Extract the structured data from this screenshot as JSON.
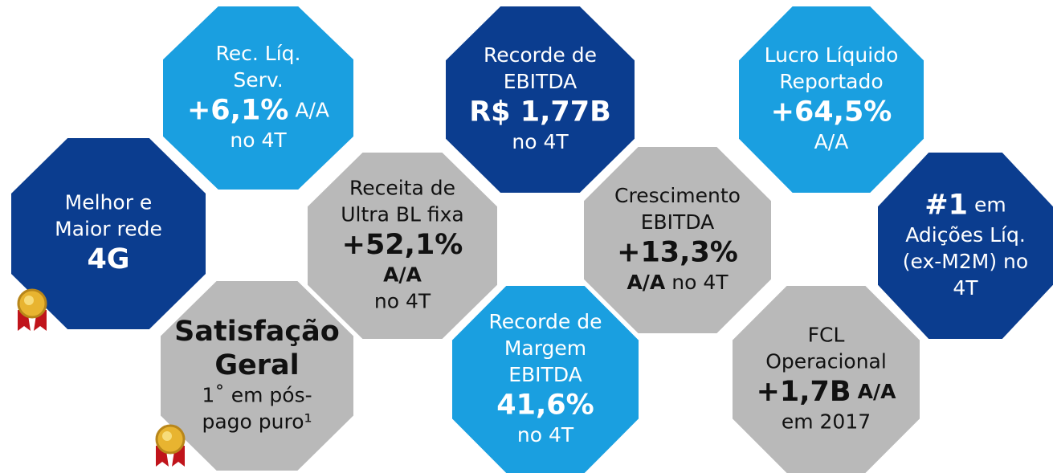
{
  "nodes": [
    {
      "color": "#1a9fe0",
      "text_color": "#ffffff",
      "lines": [
        [
          {
            "text": "Rec. Líq.",
            "style": "normal"
          }
        ],
        [
          {
            "text": "Serv.",
            "style": "normal"
          }
        ],
        [
          {
            "text": "+6,1%",
            "style": "big"
          },
          {
            "text": "A/A",
            "style": "normal"
          }
        ],
        [
          {
            "text": "no 4T",
            "style": "normal"
          }
        ]
      ]
    },
    {
      "color": "#0b3d8f",
      "text_color": "#ffffff",
      "lines": [
        [
          {
            "text": "Melhor e",
            "style": "normal"
          }
        ],
        [
          {
            "text": "Maior rede",
            "style": "normal"
          }
        ],
        [
          {
            "text": "4G",
            "style": "big"
          }
        ]
      ]
    },
    {
      "color": "#b9b9b9",
      "text_color": "#111111",
      "lines": [
        [
          {
            "text": "Receita de",
            "style": "normal"
          }
        ],
        [
          {
            "text": "Ultra BL fixa",
            "style": "normal"
          }
        ],
        [
          {
            "text": "+52,1%",
            "style": "big"
          }
        ],
        [
          {
            "text": "A/A",
            "style": "bold"
          }
        ],
        [
          {
            "text": "no 4T",
            "style": "normal"
          }
        ]
      ]
    },
    {
      "color": "#b9b9b9",
      "text_color": "#111111",
      "lines": [
        [
          {
            "text": "Satisfação",
            "style": "big"
          }
        ],
        [
          {
            "text": "Geral",
            "style": "big"
          }
        ],
        [
          {
            "text": "1˚ em pós-",
            "style": "normal"
          }
        ],
        [
          {
            "text": "pago puro¹",
            "style": "normal"
          }
        ]
      ]
    },
    {
      "color": "#0b3d8f",
      "text_color": "#ffffff",
      "lines": [
        [
          {
            "text": "Recorde de",
            "style": "normal"
          }
        ],
        [
          {
            "text": "EBITDA",
            "style": "normal"
          }
        ],
        [
          {
            "text": "R$ 1,77B",
            "style": "big"
          }
        ],
        [
          {
            "text": "no 4T",
            "style": "normal"
          }
        ]
      ]
    },
    {
      "color": "#b9b9b9",
      "text_color": "#111111",
      "lines": [
        [
          {
            "text": "Crescimento",
            "style": "normal"
          }
        ],
        [
          {
            "text": "EBITDA",
            "style": "normal"
          }
        ],
        [
          {
            "text": "+13,3%",
            "style": "big"
          }
        ],
        [
          {
            "text": "A/A",
            "style": "bold"
          },
          {
            "text": "no 4T",
            "style": "normal"
          }
        ]
      ]
    },
    {
      "color": "#1a9fe0",
      "text_color": "#ffffff",
      "lines": [
        [
          {
            "text": "Recorde de",
            "style": "normal"
          }
        ],
        [
          {
            "text": "Margem",
            "style": "normal"
          }
        ],
        [
          {
            "text": "EBITDA",
            "style": "normal"
          }
        ],
        [
          {
            "text": "41,6%",
            "style": "big"
          }
        ],
        [
          {
            "text": "no 4T",
            "style": "normal"
          }
        ]
      ]
    },
    {
      "color": "#1a9fe0",
      "text_color": "#ffffff",
      "lines": [
        [
          {
            "text": "Lucro Líquido",
            "style": "normal"
          }
        ],
        [
          {
            "text": "Reportado",
            "style": "normal"
          }
        ],
        [
          {
            "text": "+64,5%",
            "style": "big"
          }
        ],
        [
          {
            "text": "A/A",
            "style": "normal"
          }
        ]
      ]
    },
    {
      "color": "#0b3d8f",
      "text_color": "#ffffff",
      "lines": [
        [
          {
            "text": "#1",
            "style": "big"
          },
          {
            "text": "em",
            "style": "normal"
          }
        ],
        [
          {
            "text": "Adições Líq.",
            "style": "normal"
          }
        ],
        [
          {
            "text": "(ex-M2M) no",
            "style": "normal"
          }
        ],
        [
          {
            "text": "4T",
            "style": "normal"
          }
        ]
      ]
    },
    {
      "color": "#b9b9b9",
      "text_color": "#111111",
      "lines": [
        [
          {
            "text": "FCL",
            "style": "normal"
          }
        ],
        [
          {
            "text": "Operacional",
            "style": "normal"
          }
        ],
        [
          {
            "text": "+1,7B",
            "style": "big"
          },
          {
            "text": "A/A",
            "style": "bold"
          }
        ],
        [
          {
            "text": "em 2017",
            "style": "normal"
          }
        ]
      ]
    }
  ]
}
